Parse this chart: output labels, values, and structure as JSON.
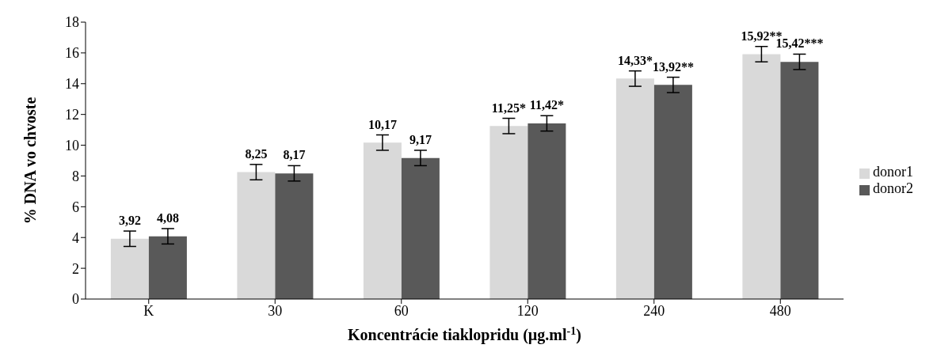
{
  "chart_data": {
    "type": "bar",
    "xlabel": "Koncentrácie tiaklopridu (µg.ml$^{-1}$)",
    "ylabel": "% DNA vo chvoste",
    "categories": [
      "K",
      "30",
      "60",
      "120",
      "240",
      "480"
    ],
    "series": [
      {
        "name": "donor1",
        "color": "#d9d9d9",
        "values": [
          3.92,
          8.25,
          10.17,
          11.25,
          14.33,
          15.92
        ],
        "errors": [
          0.5,
          0.5,
          0.5,
          0.5,
          0.5,
          0.5
        ],
        "value_labels": [
          "3,92",
          "8,25",
          "10,17",
          "11,25*",
          "14,33*",
          "15,92**"
        ]
      },
      {
        "name": "donor2",
        "color": "#595959",
        "values": [
          4.08,
          8.17,
          9.17,
          11.42,
          13.92,
          15.42
        ],
        "errors": [
          0.5,
          0.5,
          0.5,
          0.5,
          0.5,
          0.5
        ],
        "value_labels": [
          "4,08",
          "8,17",
          "9,17",
          "11,42*",
          "13,92**",
          "15,42***"
        ]
      }
    ],
    "ylim": [
      0,
      18
    ],
    "yticks": [
      0,
      2,
      4,
      6,
      8,
      10,
      12,
      14,
      16,
      18
    ],
    "grid": false,
    "legend": "right"
  }
}
